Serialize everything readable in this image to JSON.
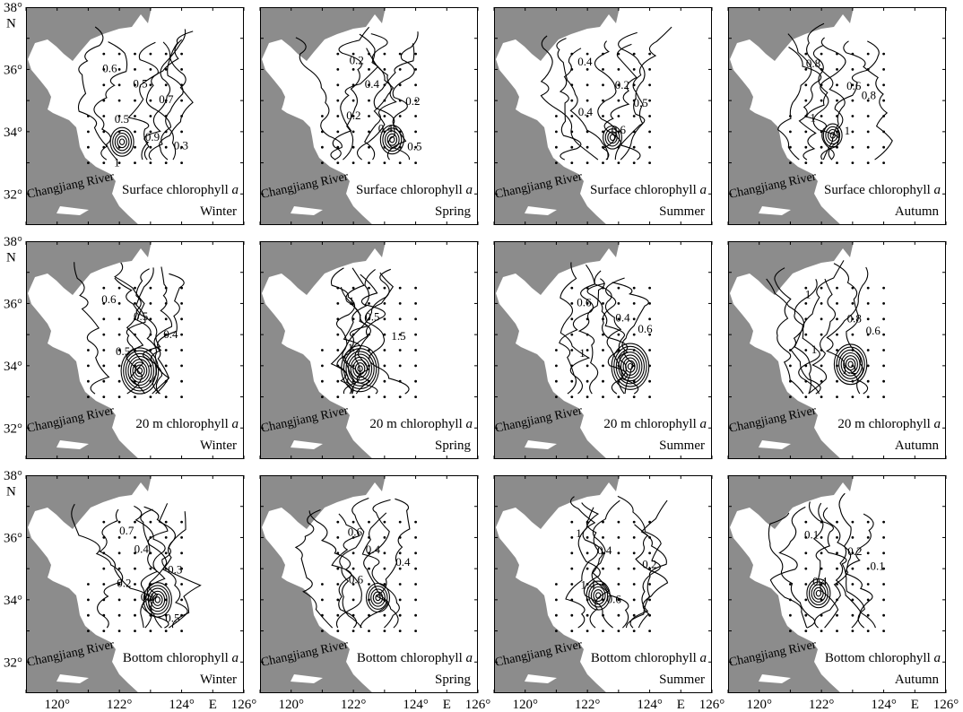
{
  "figure": {
    "rows": [
      {
        "variable": "Surface chlorophyll",
        "italic": "a"
      },
      {
        "variable": "20 m chlorophyll",
        "italic": "a"
      },
      {
        "variable": "Bottom chlorophyll",
        "italic": "a"
      }
    ],
    "seasons": [
      "Winter",
      "Spring",
      "Summer",
      "Autumn"
    ],
    "river_label": "Changjiang River",
    "axes": {
      "lat_ticks": [
        "38°",
        "36°",
        "34°",
        "32°"
      ],
      "lat_unit": "N",
      "lon_ticks": [
        "120°",
        "122°",
        "124°",
        "126°"
      ],
      "lon_unit": "E",
      "lon_range": [
        119,
        126
      ],
      "lat_range": [
        31,
        38
      ]
    },
    "contour_labels": [
      [
        [
          "0.6",
          "0.5",
          "0.7",
          "0.5",
          "0.9",
          "0.3",
          "1"
        ],
        [
          "0.2",
          "0.4",
          "0.2",
          "0.2",
          "0.4",
          "0.5"
        ],
        [
          "0.4",
          "0.2",
          "0.5",
          "0.4",
          "0.6"
        ],
        [
          "0.8",
          "0.6",
          "0.8",
          "1",
          "1"
        ]
      ],
      [
        [
          "0.6",
          "0.5",
          "0.4",
          "0.5"
        ],
        [
          "1",
          "0.5",
          "1.5",
          "1"
        ],
        [
          "0.6",
          "0.4",
          "0.6",
          "1"
        ],
        [
          "1",
          "0.8",
          "0.6",
          "1",
          "1.2"
        ]
      ],
      [
        [
          "0.7",
          "0.4",
          "0.3",
          "0.2",
          "0.1",
          "0.5"
        ],
        [
          "0.6",
          "0.4",
          "0.4",
          "0.6"
        ],
        [
          "1",
          "0.4",
          "0.2",
          "1.4",
          "0.6"
        ],
        [
          "0.1",
          "0.2",
          "0.1",
          "0.4"
        ]
      ]
    ],
    "colors": {
      "land": "#8c8c8c",
      "sea": "#ffffff",
      "contour": "#000000"
    }
  }
}
